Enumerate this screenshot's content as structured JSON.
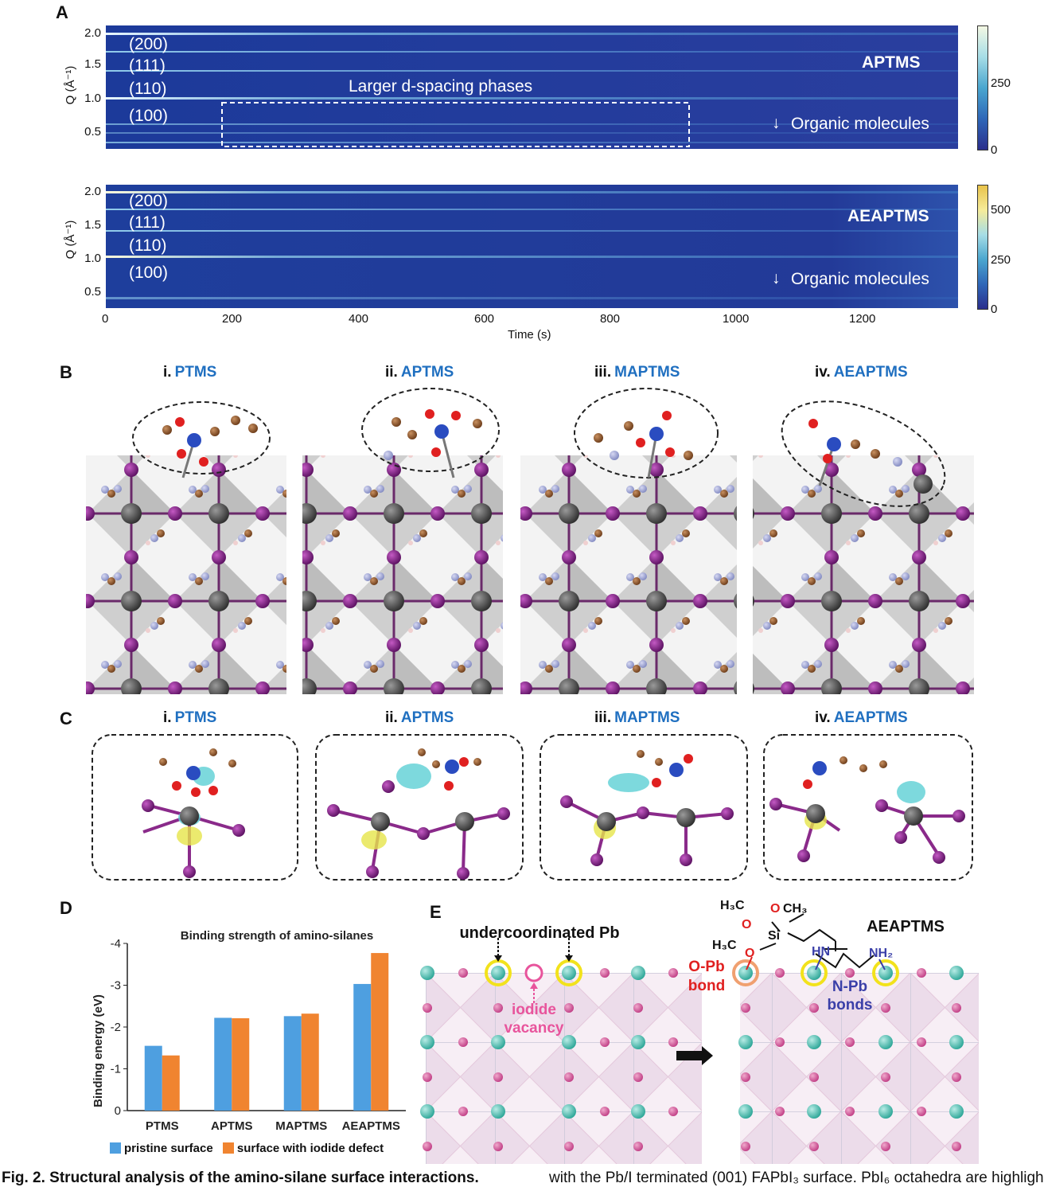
{
  "panels": {
    "A": "A",
    "B": "B",
    "C": "C",
    "D": "D",
    "E": "E"
  },
  "panel_a": {
    "top": {
      "compound": "APTMS",
      "peaks": [
        "(200)",
        "(111)",
        "(110)",
        "(100)"
      ],
      "box_label": "Larger d-spacing phases",
      "arrow_label": "Organic molecules",
      "cbar_ticks": [
        "250",
        "0"
      ]
    },
    "bottom": {
      "compound": "AEAPTMS",
      "peaks": [
        "(200)",
        "(111)",
        "(110)",
        "(100)"
      ],
      "arrow_label": "Organic molecules",
      "cbar_ticks": [
        "500",
        "250",
        "0"
      ]
    },
    "ylabel": "Q (Å⁻¹)",
    "yticks": [
      "2.0",
      "1.5",
      "1.0",
      "0.5"
    ],
    "xlabel": "Time (s)",
    "xticks": [
      "0",
      "200",
      "400",
      "600",
      "800",
      "1000",
      "1200"
    ]
  },
  "panel_b": {
    "titles": [
      {
        "num": "i.",
        "name": "PTMS"
      },
      {
        "num": "ii.",
        "name": "APTMS"
      },
      {
        "num": "iii.",
        "name": "MAPTMS"
      },
      {
        "num": "iv.",
        "name": "AEAPTMS"
      }
    ]
  },
  "panel_c": {
    "titles": [
      {
        "num": "i.",
        "name": "PTMS"
      },
      {
        "num": "ii.",
        "name": "APTMS"
      },
      {
        "num": "iii.",
        "name": "MAPTMS"
      },
      {
        "num": "iv.",
        "name": "AEAPTMS"
      }
    ]
  },
  "chart_data": {
    "type": "bar",
    "title": "Binding strength of amino-silanes",
    "ylabel": "Binding energy (eV)",
    "categories": [
      "PTMS",
      "APTMS",
      "MAPTMS",
      "AEAPTMS"
    ],
    "series": [
      {
        "name": "pristine surface",
        "color": "#4e9fe0",
        "values": [
          -1.55,
          -2.22,
          -2.26,
          -3.03
        ]
      },
      {
        "name": "surface with iodide defect",
        "color": "#f08430",
        "values": [
          -1.32,
          -2.21,
          -2.32,
          -3.77
        ]
      }
    ],
    "ylim": [
      0,
      -4
    ],
    "yticks": [
      "-4",
      "-3",
      "-2",
      "-1",
      "0"
    ]
  },
  "panel_e": {
    "undercoordinated": "undercoordinated Pb",
    "vacancy_line1": "iodide",
    "vacancy_line2": "vacancy",
    "compound": "AEAPTMS",
    "opb_line1": "O-Pb",
    "opb_line2": "bond",
    "npb_line1": "N-Pb",
    "npb_line2": "bonds",
    "h3c_a": "H₃C",
    "h3c_b": "H₃C",
    "ch3": "CH₃",
    "si": "Si",
    "o": "O",
    "hn": "HN",
    "nh2": "NH₂",
    "colors": {
      "pb": "#3fbfb0",
      "i": "#d25ca0",
      "highlight": "#f2e21c",
      "vacancy": "#e8549c",
      "opb": "#e02020",
      "npb": "#3a3fa8"
    }
  },
  "caption": {
    "left": "Fig. 2. Structural analysis of the amino-silane surface interactions.",
    "right": "with the Pb/I terminated (001) FAPbI₃ surface. PbI₆ octahedra are highligh"
  }
}
